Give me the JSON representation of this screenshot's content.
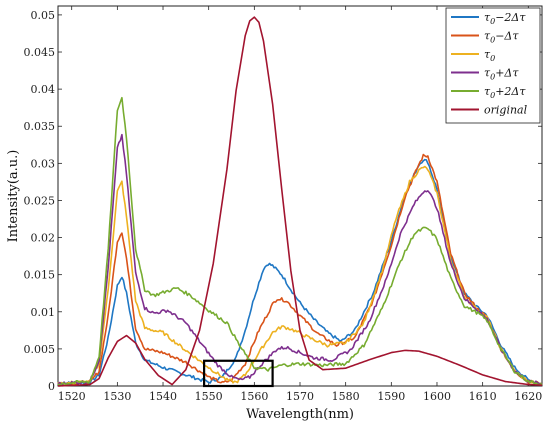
{
  "chart_data": {
    "type": "line",
    "title": "",
    "xlabel": "Wavelength(nm)",
    "ylabel": "Intensity(a.u.)",
    "xlim": [
      1517,
      1623
    ],
    "ylim": [
      0,
      0.0512
    ],
    "xticks": [
      1520,
      1530,
      1540,
      1550,
      1560,
      1570,
      1580,
      1590,
      1600,
      1610,
      1620
    ],
    "xtick_labels": [
      "1520",
      "1530",
      "1540",
      "1550",
      "1560",
      "1570",
      "1580",
      "1590",
      "1600",
      "1610",
      "1620"
    ],
    "yticks": [
      0,
      0.005,
      0.01,
      0.015,
      0.02,
      0.025,
      0.03,
      0.035,
      0.04,
      0.045,
      0.05
    ],
    "ytick_labels": [
      "0",
      "0.005",
      "0.01",
      "0.015",
      "0.02",
      "0.025",
      "0.03",
      "0.035",
      "0.04",
      "0.045",
      "0.05"
    ],
    "grid": false,
    "legend_position": "top-right",
    "annotation_box": {
      "x": [
        1549,
        1564
      ],
      "y": [
        0,
        0.0034
      ]
    },
    "series": [
      {
        "name": "τ0−2Δτ",
        "label_parts": [
          "τ",
          "0",
          "−2Δτ"
        ],
        "color": "#1f77c4",
        "x": [
          1517,
          1524,
          1526,
          1528,
          1530,
          1531,
          1532,
          1534,
          1536,
          1540,
          1545,
          1550,
          1553,
          1556,
          1558,
          1560,
          1562,
          1563,
          1564,
          1566,
          1568,
          1570,
          1573,
          1576,
          1579,
          1582,
          1586,
          1590,
          1593,
          1596,
          1597,
          1598,
          1600,
          1603,
          1606,
          1609,
          1611,
          1614,
          1617,
          1620,
          1623
        ],
        "y": [
          0.0003,
          0.0005,
          0.0015,
          0.0065,
          0.0135,
          0.0148,
          0.0125,
          0.0058,
          0.0035,
          0.0025,
          0.0015,
          0.0005,
          0.0012,
          0.0038,
          0.0075,
          0.012,
          0.0158,
          0.0165,
          0.0162,
          0.015,
          0.013,
          0.0112,
          0.009,
          0.0072,
          0.006,
          0.0075,
          0.0125,
          0.0195,
          0.0258,
          0.0298,
          0.0305,
          0.0302,
          0.0265,
          0.0175,
          0.0125,
          0.0105,
          0.0095,
          0.0055,
          0.0025,
          0.0008,
          0.0003
        ]
      },
      {
        "name": "τ0−Δτ",
        "label_parts": [
          "τ",
          "0",
          "−Δτ"
        ],
        "color": "#d95319",
        "x": [
          1517,
          1524,
          1526,
          1528,
          1530,
          1531,
          1532,
          1534,
          1536,
          1540,
          1545,
          1550,
          1553,
          1555,
          1558,
          1561,
          1564,
          1565,
          1567,
          1570,
          1574,
          1578,
          1582,
          1586,
          1590,
          1593,
          1596,
          1597,
          1598,
          1600,
          1603,
          1606,
          1609,
          1611,
          1614,
          1617,
          1620,
          1623
        ],
        "y": [
          0.0003,
          0.0005,
          0.002,
          0.0095,
          0.0195,
          0.0208,
          0.0172,
          0.0078,
          0.005,
          0.0045,
          0.0032,
          0.0012,
          0.0004,
          0.0008,
          0.003,
          0.0075,
          0.011,
          0.0118,
          0.0115,
          0.0095,
          0.007,
          0.0055,
          0.0065,
          0.0115,
          0.019,
          0.0255,
          0.0298,
          0.031,
          0.031,
          0.0275,
          0.0178,
          0.0125,
          0.0103,
          0.0092,
          0.005,
          0.002,
          0.0006,
          0.0003
        ]
      },
      {
        "name": "τ0",
        "label_parts": [
          "τ",
          "0",
          ""
        ],
        "color": "#edb120",
        "x": [
          1517,
          1524,
          1526,
          1528,
          1530,
          1531,
          1532,
          1534,
          1536,
          1540,
          1545,
          1550,
          1554,
          1556,
          1558,
          1561,
          1564,
          1566,
          1568,
          1572,
          1576,
          1580,
          1584,
          1588,
          1591,
          1594,
          1596,
          1597,
          1598,
          1600,
          1603,
          1606,
          1609,
          1611,
          1614,
          1617,
          1620,
          1623
        ],
        "y": [
          0.0003,
          0.0006,
          0.003,
          0.013,
          0.0262,
          0.0275,
          0.0228,
          0.0115,
          0.0078,
          0.0072,
          0.0048,
          0.0025,
          0.0008,
          0.0005,
          0.0015,
          0.0045,
          0.0072,
          0.008,
          0.0077,
          0.0065,
          0.0055,
          0.0058,
          0.0085,
          0.0155,
          0.0225,
          0.0275,
          0.029,
          0.0295,
          0.0292,
          0.026,
          0.017,
          0.012,
          0.0102,
          0.0092,
          0.005,
          0.002,
          0.0006,
          0.0003
        ]
      },
      {
        "name": "τ0+Δτ",
        "label_parts": [
          "τ",
          "0",
          "+Δτ"
        ],
        "color": "#7e2f8e",
        "x": [
          1517,
          1524,
          1526,
          1528,
          1530,
          1531,
          1532,
          1534,
          1536,
          1538,
          1541,
          1545,
          1549,
          1552,
          1555,
          1557,
          1559,
          1562,
          1565,
          1567,
          1570,
          1573,
          1577,
          1581,
          1585,
          1589,
          1592,
          1595,
          1597,
          1598,
          1600,
          1603,
          1606,
          1609,
          1611,
          1614,
          1617,
          1620,
          1623
        ],
        "y": [
          0.0003,
          0.0006,
          0.0035,
          0.016,
          0.032,
          0.0338,
          0.0285,
          0.0152,
          0.0105,
          0.0098,
          0.0102,
          0.0085,
          0.0052,
          0.0028,
          0.0012,
          0.0008,
          0.0012,
          0.0032,
          0.005,
          0.0052,
          0.0045,
          0.0038,
          0.0035,
          0.0048,
          0.0085,
          0.0145,
          0.0205,
          0.0245,
          0.0262,
          0.0265,
          0.024,
          0.0165,
          0.0118,
          0.0102,
          0.009,
          0.005,
          0.002,
          0.0006,
          0.0003
        ]
      },
      {
        "name": "τ0+2Δτ",
        "label_parts": [
          "τ",
          "0",
          "+2Δτ"
        ],
        "color": "#77ac30",
        "x": [
          1517,
          1524,
          1526,
          1528,
          1530,
          1531,
          1532,
          1534,
          1536,
          1538,
          1541,
          1543,
          1546,
          1550,
          1554,
          1557,
          1560,
          1563,
          1566,
          1570,
          1575,
          1580,
          1584,
          1588,
          1592,
          1595,
          1597,
          1598,
          1600,
          1603,
          1606,
          1609,
          1611,
          1614,
          1617,
          1620,
          1623
        ],
        "y": [
          0.0003,
          0.0006,
          0.004,
          0.0185,
          0.0372,
          0.0388,
          0.0335,
          0.0185,
          0.013,
          0.0122,
          0.0128,
          0.0132,
          0.0122,
          0.0102,
          0.0085,
          0.0052,
          0.0025,
          0.0022,
          0.0028,
          0.003,
          0.0028,
          0.003,
          0.0055,
          0.0105,
          0.0168,
          0.0205,
          0.0212,
          0.0212,
          0.0198,
          0.0145,
          0.0108,
          0.0098,
          0.0088,
          0.005,
          0.002,
          0.0006,
          0.0003
        ]
      },
      {
        "name": "original",
        "label_parts": [
          "",
          "",
          "original"
        ],
        "color": "#a2142f",
        "x": [
          1517,
          1524,
          1526,
          1528,
          1530,
          1532,
          1534,
          1536,
          1539,
          1542,
          1545,
          1548,
          1551,
          1554,
          1556,
          1558,
          1559,
          1560,
          1561,
          1562,
          1564,
          1566,
          1568,
          1570,
          1572,
          1575,
          1580,
          1585,
          1590,
          1593,
          1596,
          1600,
          1605,
          1610,
          1615,
          1620,
          1623
        ],
        "y": [
          0.0,
          0.0002,
          0.001,
          0.0038,
          0.006,
          0.0068,
          0.0058,
          0.0036,
          0.0014,
          0.0002,
          0.0022,
          0.0075,
          0.0165,
          0.0292,
          0.0398,
          0.0472,
          0.0492,
          0.0497,
          0.049,
          0.0465,
          0.038,
          0.0265,
          0.0155,
          0.0075,
          0.0035,
          0.0022,
          0.0024,
          0.0035,
          0.0045,
          0.0048,
          0.0047,
          0.004,
          0.0028,
          0.0015,
          0.0006,
          0.0002,
          0.0001
        ]
      }
    ]
  }
}
